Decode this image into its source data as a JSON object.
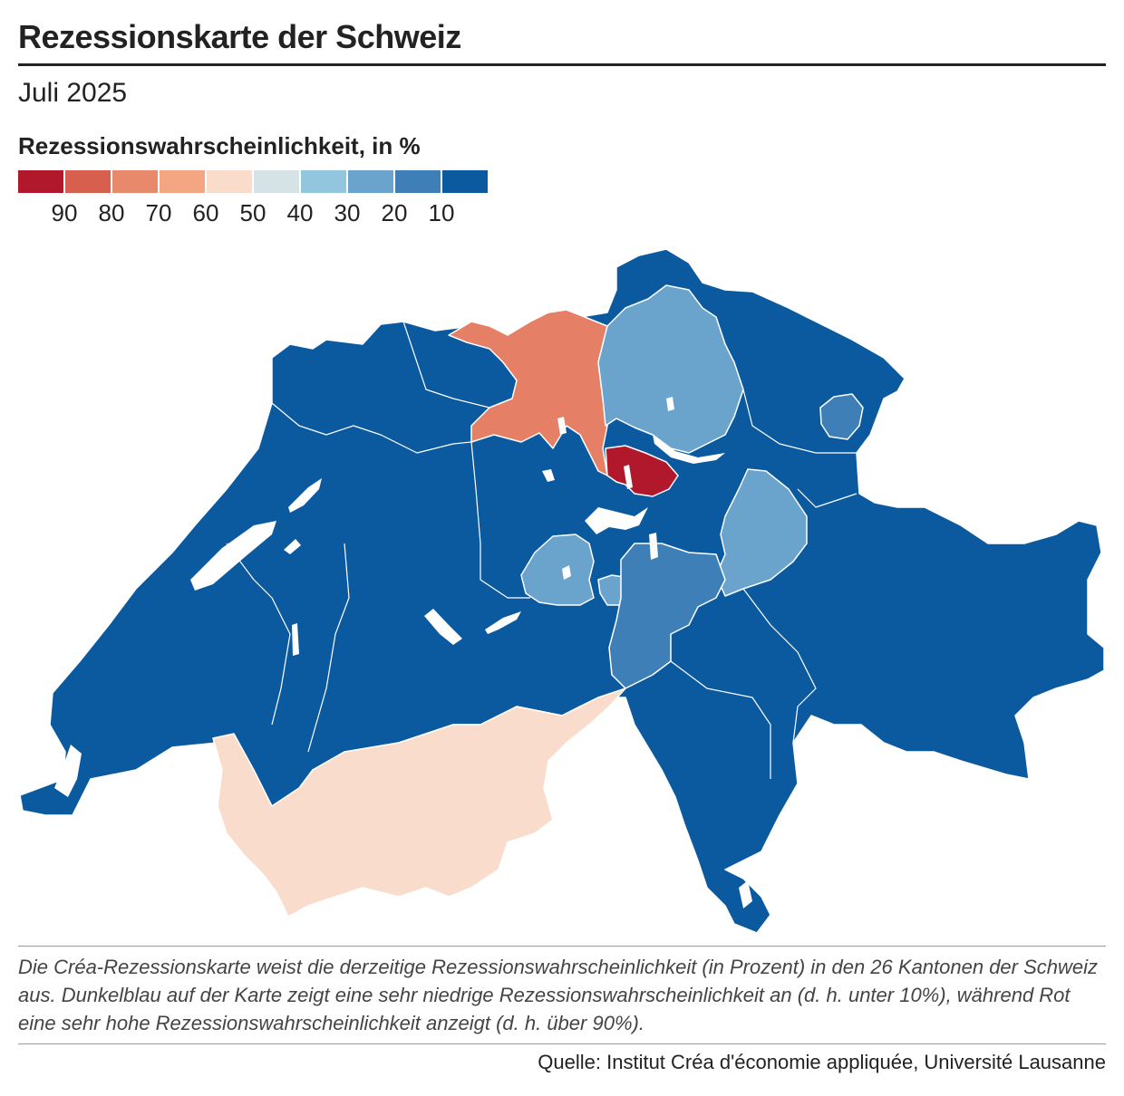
{
  "header": {
    "title": "Rezessionskarte der Schweiz",
    "subtitle": "Juli 2025"
  },
  "legend": {
    "title": "Rezessionswahrscheinlichkeit, in %",
    "colors": [
      "#b2182b",
      "#d6604d",
      "#e8896b",
      "#f4a582",
      "#f9dccb",
      "#d6e3e6",
      "#92c5de",
      "#6aa4cd",
      "#3f7fb8",
      "#0b5aa0"
    ],
    "labels": [
      "90",
      "80",
      "70",
      "60",
      "50",
      "40",
      "30",
      "20",
      "10"
    ]
  },
  "map": {
    "regions": [
      {
        "name": "dark-blue-cantons",
        "color": "#0b5aa0"
      },
      {
        "name": "aargau",
        "color": "#e57f65"
      },
      {
        "name": "zurich",
        "color": "#6aa4cd"
      },
      {
        "name": "zug",
        "color": "#b2182b"
      },
      {
        "name": "schwyz",
        "color": "#6aa4cd"
      },
      {
        "name": "obwalden",
        "color": "#6aa4cd"
      },
      {
        "name": "nidwalden",
        "color": "#6aa4cd"
      },
      {
        "name": "uri",
        "color": "#3f7fb8"
      },
      {
        "name": "appenzell-innerrhoden",
        "color": "#3f7fb8"
      },
      {
        "name": "valais",
        "color": "#f9dccb"
      }
    ]
  },
  "note": "Die Créa-Rezessionskarte weist die derzeitige Rezessionswahrscheinlichkeit (in Prozent) in den 26 Kantonen der Schweiz aus. Dunkelblau auf der Karte zeigt eine sehr niedrige Rezessionswahrscheinlichkeit an (d. h. unter 10%), während Rot eine sehr hohe Rezessionswahrscheinlichkeit anzeigt (d. h. über 90%).",
  "source": "Quelle: Institut Créa d'économie appliquée, Université Lausanne"
}
